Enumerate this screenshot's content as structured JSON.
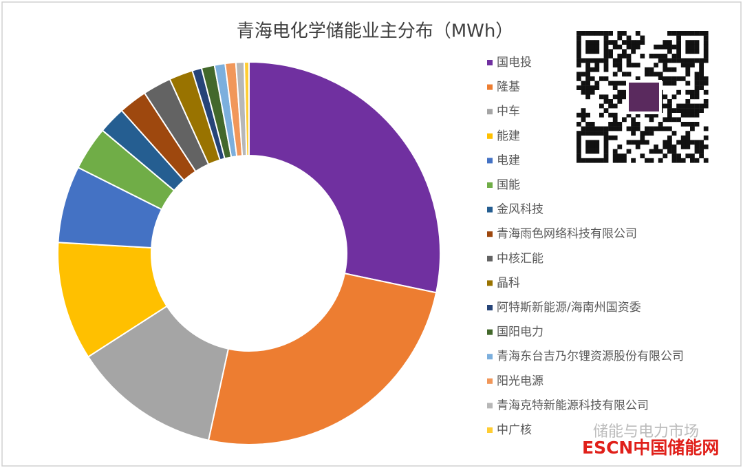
{
  "chart_data": {
    "type": "donut",
    "title": "青海电化学储能业主分布（MWh）",
    "categories": [
      "国电投",
      "隆基",
      "中车",
      "能建",
      "电建",
      "国能",
      "金风科技",
      "青海雨色网络科技有限公司",
      "中核汇能",
      "晶科",
      "阿特斯新能源/海南州国资委",
      "国阳电力",
      "青海东台吉乃尔锂资源股份有限公司",
      "阳光电源",
      "青海克特新能源科技有限公司",
      "中广核"
    ],
    "values": [
      28.3,
      25.1,
      12.5,
      10,
      6.5,
      3.7,
      2.3,
      2.4,
      2.4,
      2,
      0.8,
      1.1,
      0.9,
      0.9,
      0.7,
      0.4
    ],
    "colors": [
      "#7030a0",
      "#ed7d31",
      "#a5a5a5",
      "#ffc000",
      "#4472c4",
      "#70ad47",
      "#255e91",
      "#9e480e",
      "#636363",
      "#997300",
      "#264478",
      "#43682b",
      "#7cafdd",
      "#f1975a",
      "#b7b7b7",
      "#ffcd33"
    ],
    "legend": "right",
    "annotations": [
      "储能与电力市场",
      "ESCN中国储能网"
    ]
  }
}
